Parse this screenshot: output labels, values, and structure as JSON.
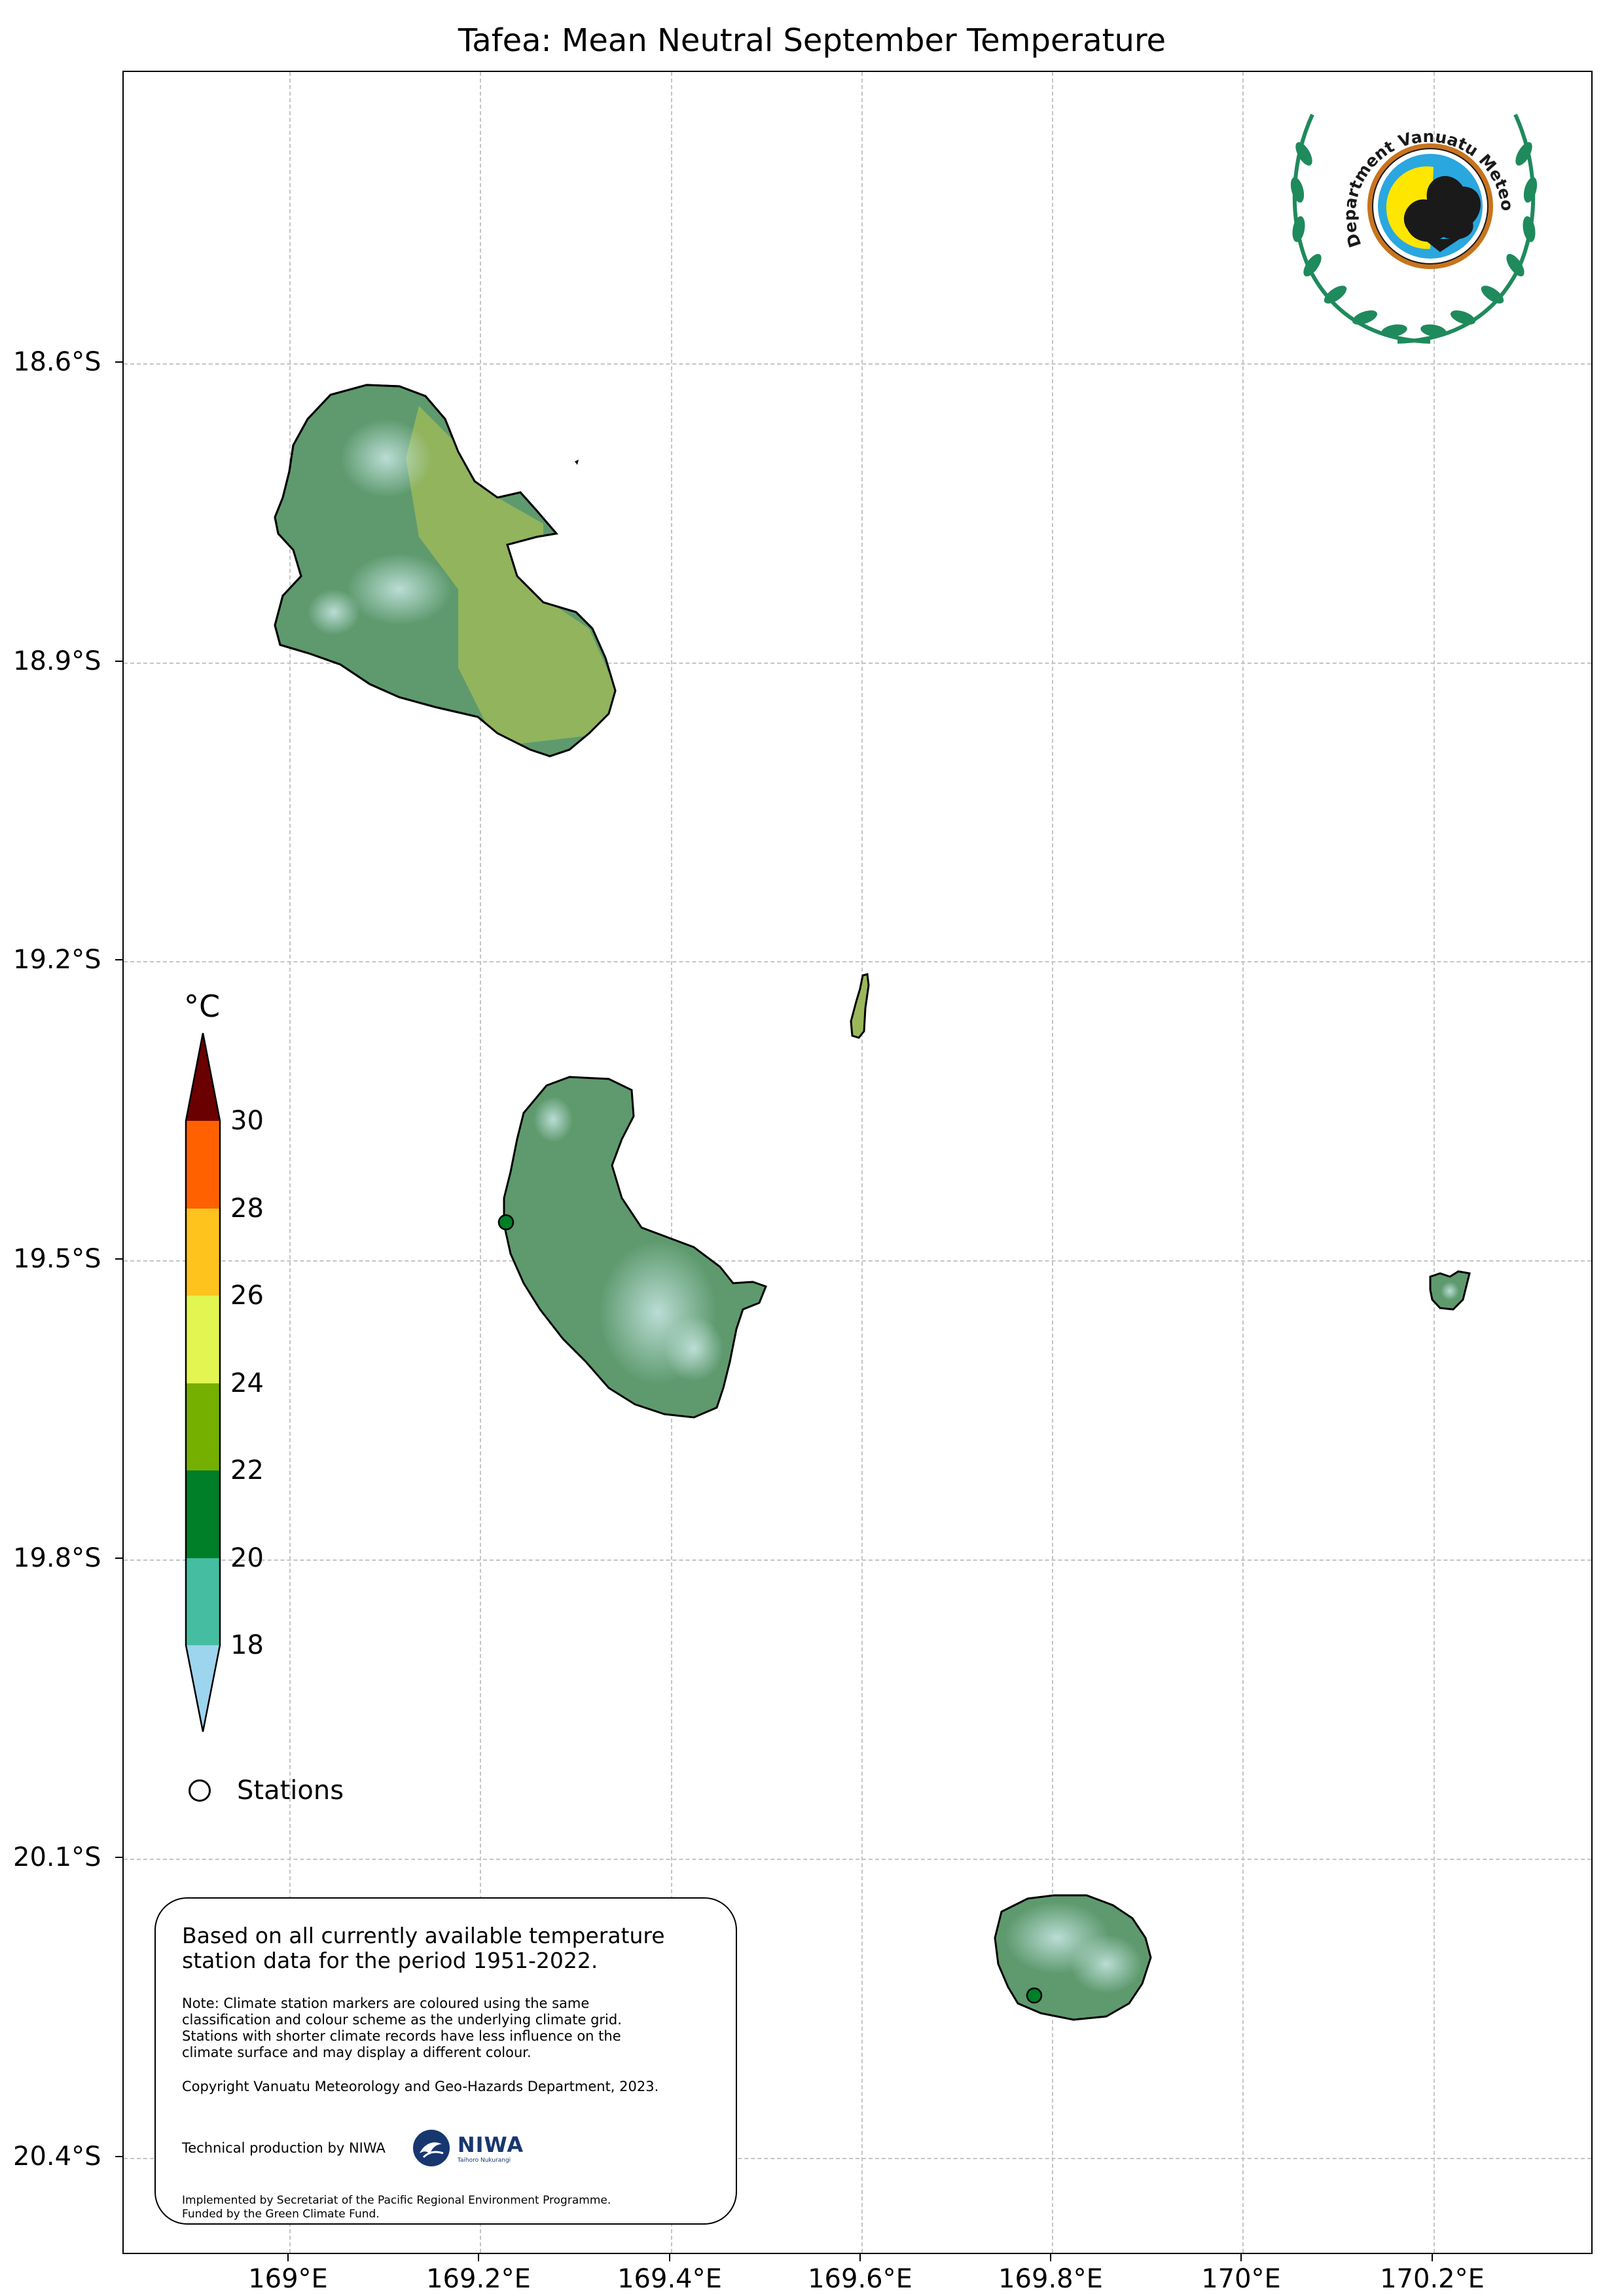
{
  "title": "Tafea: Mean Neutral September Temperature",
  "lat_ticks": [
    "18.6°S",
    "18.9°S",
    "19.2°S",
    "19.5°S",
    "19.8°S",
    "20.1°S",
    "20.4°S"
  ],
  "lon_ticks": [
    "169°E",
    "169.2°E",
    "169.4°E",
    "169.6°E",
    "169.8°E",
    "170°E",
    "170.2°E"
  ],
  "colorbar": {
    "unit": "°C",
    "labels": [
      "30",
      "28",
      "26",
      "24",
      "22",
      "20",
      "18"
    ],
    "colors": {
      "above_30": "#6b0000",
      "28_30": "#ff6000",
      "26_28": "#ffc31e",
      "24_26": "#e2f550",
      "22_24": "#75b000",
      "20_22": "#007e28",
      "18_20": "#44bda0",
      "below_18": "#9dd4ee"
    }
  },
  "legend": {
    "stations_label": "Stations"
  },
  "note": {
    "main": "Based on all currently available temperature\nstation data for the period 1951-2022.",
    "small": "Note: Climate station markers are coloured using the same\nclassification and colour scheme as the underlying climate grid.\nStations with shorter climate records have less influence on the\nclimate surface and may display a different colour.",
    "copyright": "Copyright Vanuatu Meteorology and Geo-Hazards Department, 2023.",
    "technical": "Technical production by NIWA",
    "niwa_name": "NIWA",
    "niwa_sub": "Taihoro Nukurangi",
    "implemented": "Implemented by Secretariat of the Pacific Regional Environment Programme.\nFunded by the Green Climate Fund."
  },
  "logo": {
    "text": "Department Vanuatu Meteorology and Geo-Hazards",
    "icon": "vmgd-emblem-icon"
  },
  "map_colors": {
    "land_main": "#5e9a6e",
    "land_warm": "#9ab85a",
    "land_cool": "#a9d4d0",
    "station_fill": "#007e28"
  }
}
